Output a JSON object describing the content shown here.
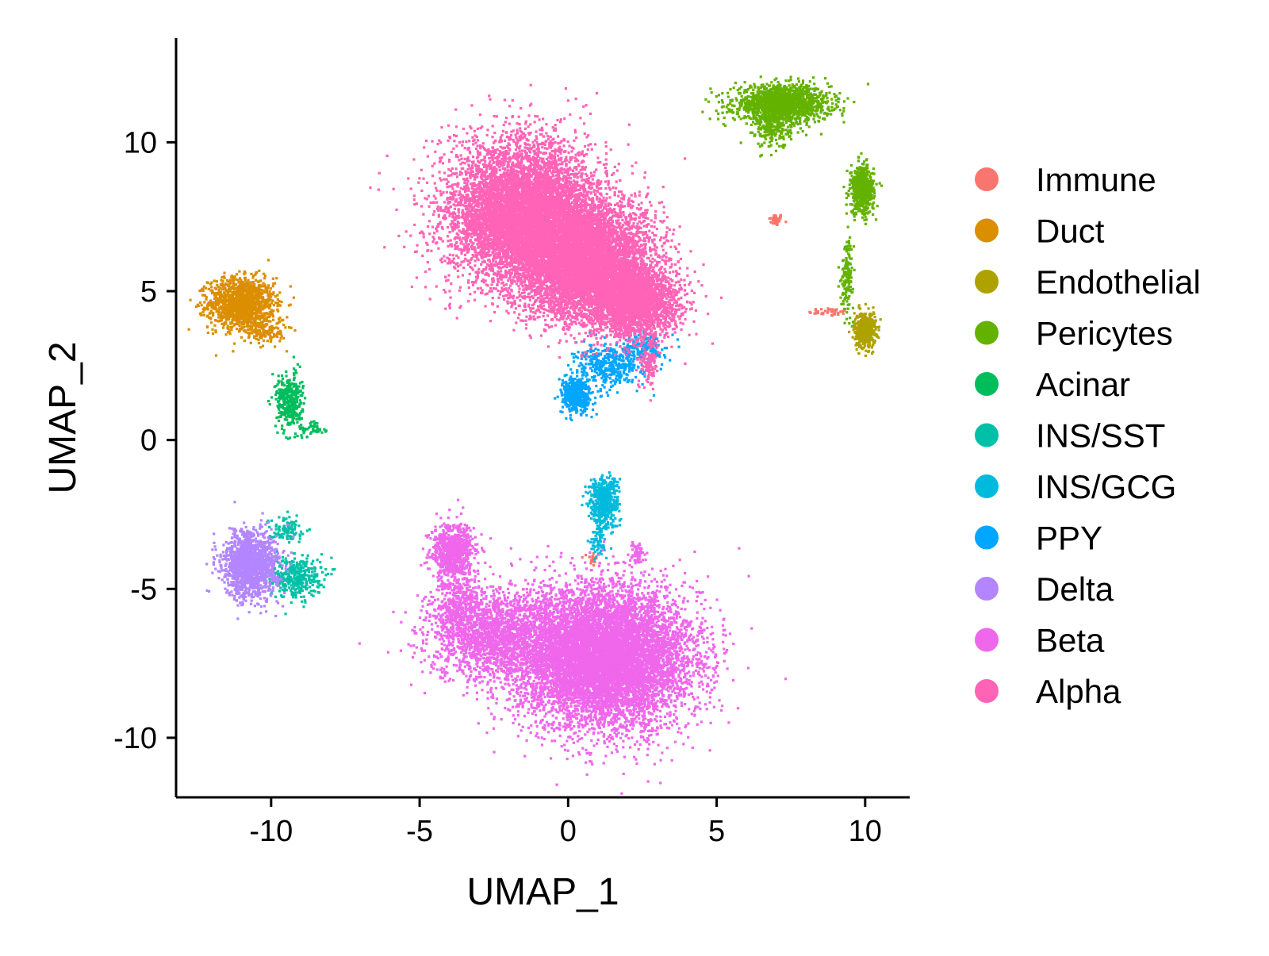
{
  "chart_data": {
    "type": "scatter",
    "title": "",
    "xlabel": "UMAP_1",
    "ylabel": "UMAP_2",
    "xlim": [
      -13.2,
      11.5
    ],
    "ylim": [
      -12.0,
      13.5
    ],
    "xticks": [
      -10,
      -5,
      0,
      5,
      10
    ],
    "yticks": [
      -10,
      -5,
      0,
      5,
      10
    ],
    "xtick_labels": [
      "-10",
      "-5",
      "0",
      "5",
      "10"
    ],
    "ytick_labels": [
      "-10",
      "-5",
      "0",
      "5",
      "10"
    ],
    "grid": false,
    "legend_position": "right",
    "series": [
      {
        "name": "Immune",
        "color": "#F8766D",
        "clusters": [
          {
            "cx": 7.0,
            "cy": 7.4,
            "sx": 0.12,
            "sy": 0.1,
            "n": 40
          },
          {
            "cx": 8.8,
            "cy": 4.3,
            "sx": 0.35,
            "sy": 0.07,
            "n": 40
          },
          {
            "cx": 0.8,
            "cy": -4.0,
            "sx": 0.08,
            "sy": 0.12,
            "n": 20
          }
        ]
      },
      {
        "name": "Duct",
        "color": "#DB8E00",
        "clusters": [
          {
            "cx": -11.0,
            "cy": 4.6,
            "sx": 0.55,
            "sy": 0.42,
            "n": 1300
          },
          {
            "cx": -10.2,
            "cy": 3.7,
            "sx": 0.35,
            "sy": 0.25,
            "n": 150
          }
        ]
      },
      {
        "name": "Endothelial",
        "color": "#AEA200",
        "clusters": [
          {
            "cx": 10.0,
            "cy": 3.7,
            "sx": 0.18,
            "sy": 0.3,
            "n": 450
          }
        ]
      },
      {
        "name": "Pericytes",
        "color": "#64B200",
        "clusters": [
          {
            "cx": 7.2,
            "cy": 11.3,
            "sx": 0.8,
            "sy": 0.3,
            "n": 1500
          },
          {
            "cx": 6.9,
            "cy": 10.5,
            "sx": 0.3,
            "sy": 0.35,
            "n": 250
          },
          {
            "cx": 9.9,
            "cy": 8.4,
            "sx": 0.2,
            "sy": 0.4,
            "n": 550
          },
          {
            "cx": 9.4,
            "cy": 5.6,
            "sx": 0.1,
            "sy": 0.6,
            "n": 150
          }
        ]
      },
      {
        "name": "Acinar",
        "color": "#00BD5C",
        "clusters": [
          {
            "cx": -9.4,
            "cy": 1.3,
            "sx": 0.22,
            "sy": 0.45,
            "n": 350
          },
          {
            "cx": -8.6,
            "cy": 0.4,
            "sx": 0.25,
            "sy": 0.15,
            "n": 50
          }
        ]
      },
      {
        "name": "INS/SST",
        "color": "#00C1A7",
        "clusters": [
          {
            "cx": -9.2,
            "cy": -4.6,
            "sx": 0.45,
            "sy": 0.35,
            "n": 400
          },
          {
            "cx": -9.5,
            "cy": -3.0,
            "sx": 0.3,
            "sy": 0.2,
            "n": 100
          }
        ]
      },
      {
        "name": "INS/GCG",
        "color": "#00BADE",
        "clusters": [
          {
            "cx": 1.2,
            "cy": -2.1,
            "sx": 0.25,
            "sy": 0.45,
            "n": 500
          },
          {
            "cx": 1.0,
            "cy": -3.4,
            "sx": 0.15,
            "sy": 0.3,
            "n": 60
          }
        ]
      },
      {
        "name": "PPY",
        "color": "#00A6FF",
        "clusters": [
          {
            "cx": 0.3,
            "cy": 1.5,
            "sx": 0.25,
            "sy": 0.3,
            "n": 450
          },
          {
            "cx": 1.4,
            "cy": 2.5,
            "sx": 0.55,
            "sy": 0.35,
            "n": 400
          },
          {
            "cx": 2.6,
            "cy": 3.1,
            "sx": 0.35,
            "sy": 0.25,
            "n": 150
          }
        ]
      },
      {
        "name": "Delta",
        "color": "#B385FF",
        "clusters": [
          {
            "cx": -10.7,
            "cy": -4.2,
            "sx": 0.45,
            "sy": 0.55,
            "n": 1400
          }
        ]
      },
      {
        "name": "Beta",
        "color": "#EF67EB",
        "clusters": [
          {
            "cx": 1.2,
            "cy": -7.3,
            "sx": 1.45,
            "sy": 1.15,
            "n": 9000
          },
          {
            "cx": -2.5,
            "cy": -6.6,
            "sx": 1.1,
            "sy": 0.75,
            "n": 1800
          },
          {
            "cx": -3.9,
            "cy": -3.7,
            "sx": 0.35,
            "sy": 0.45,
            "n": 700
          },
          {
            "cx": -3.7,
            "cy": -5.4,
            "sx": 0.4,
            "sy": 0.6,
            "n": 400
          },
          {
            "cx": 2.3,
            "cy": -3.8,
            "sx": 0.12,
            "sy": 0.15,
            "n": 50
          }
        ]
      },
      {
        "name": "Alpha",
        "color": "#FF63B6",
        "clusters": [
          {
            "cx": -1.5,
            "cy": 7.6,
            "sx": 1.25,
            "sy": 1.2,
            "n": 7000
          },
          {
            "cx": 0.6,
            "cy": 6.0,
            "sx": 1.1,
            "sy": 0.95,
            "n": 6000
          },
          {
            "cx": 2.2,
            "cy": 4.6,
            "sx": 0.75,
            "sy": 0.6,
            "n": 2500
          },
          {
            "cx": 2.7,
            "cy": 2.6,
            "sx": 0.15,
            "sy": 0.4,
            "n": 120
          }
        ]
      }
    ]
  }
}
